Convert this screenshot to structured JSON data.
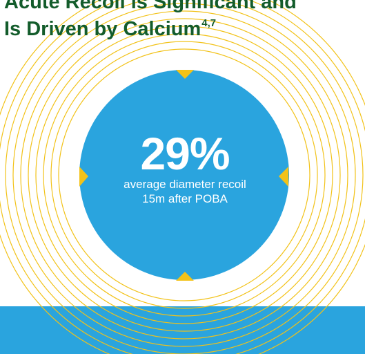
{
  "title": {
    "line1": "Acute Recoil is Significant and",
    "line2": "Is Driven by Calcium",
    "superscript": "4,7"
  },
  "stat": {
    "value": "29%",
    "description": "average diameter recoil 15m after POBA"
  },
  "colors": {
    "title": "#135c2b",
    "circle": "#2aa4de",
    "rings": "#f2c218",
    "band": "#2aa4de",
    "stat_text": "#ffffff"
  },
  "icons": [
    "arrow-down-icon",
    "arrow-up-icon",
    "arrow-right-icon",
    "arrow-left-icon"
  ]
}
